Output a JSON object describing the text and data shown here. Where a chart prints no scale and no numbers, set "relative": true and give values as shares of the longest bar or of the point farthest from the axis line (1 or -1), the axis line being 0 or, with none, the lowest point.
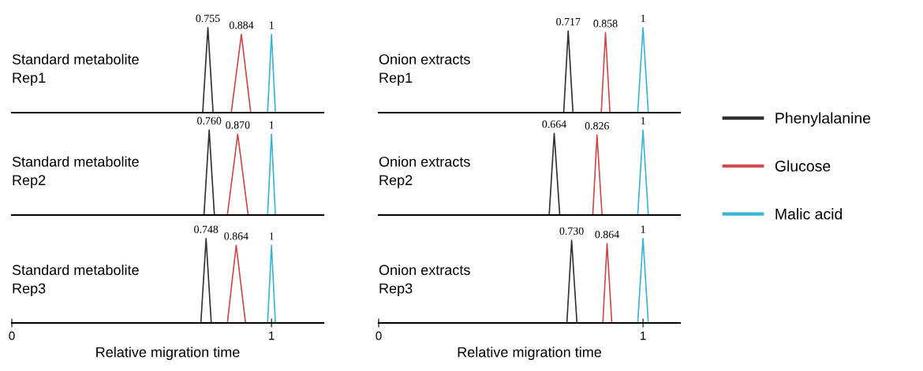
{
  "chart_data": [
    {
      "type": "line",
      "relative": true,
      "xlim": [
        0,
        1.2
      ],
      "tick_labels": false,
      "annotations": [
        "Standard metabolite\nRep1",
        {
          "text": "0.755",
          "x": 0.755,
          "y": 1
        },
        {
          "text": "0.884",
          "x": 0.884,
          "y": 0.92
        },
        {
          "text": "1",
          "x": 1,
          "y": 0.92
        }
      ],
      "series": [
        {
          "color": "#333333",
          "x": [
            0.735,
            0.755,
            0.775
          ],
          "values": [
            0,
            1,
            0
          ]
        },
        {
          "color": "#d04848",
          "x": [
            0.845,
            0.884,
            0.92
          ],
          "values": [
            0,
            0.92,
            0
          ]
        },
        {
          "color": "#3ab4d8",
          "x": [
            0.985,
            1,
            1.015
          ],
          "values": [
            0,
            0.92,
            0
          ]
        }
      ]
    },
    {
      "type": "line",
      "relative": true,
      "xlim": [
        0,
        1.14
      ],
      "tick_labels": false,
      "annotations": [
        "Onion extracts\nRep1",
        {
          "text": "0.717",
          "x": 0.717,
          "y": 0.96
        },
        {
          "text": "0.858",
          "x": 0.858,
          "y": 0.94
        },
        {
          "text": "1",
          "x": 1,
          "y": 1
        }
      ],
      "series": [
        {
          "color": "#333333",
          "x": [
            0.7,
            0.717,
            0.735
          ],
          "values": [
            0,
            0.96,
            0
          ]
        },
        {
          "color": "#d04848",
          "x": [
            0.842,
            0.858,
            0.875
          ],
          "values": [
            0,
            0.94,
            0
          ]
        },
        {
          "color": "#3ab4d8",
          "x": [
            0.98,
            1,
            1.02
          ],
          "values": [
            0,
            1,
            0
          ]
        }
      ]
    },
    {
      "type": "line",
      "relative": true,
      "xlim": [
        0,
        1.2
      ],
      "tick_labels": false,
      "annotations": [
        "Standard metabolite\nRep2",
        {
          "text": "0.760",
          "x": 0.76,
          "y": 1
        },
        {
          "text": "0.870",
          "x": 0.87,
          "y": 0.95
        },
        {
          "text": "1",
          "x": 1,
          "y": 0.95
        }
      ],
      "series": [
        {
          "color": "#333333",
          "x": [
            0.74,
            0.76,
            0.78
          ],
          "values": [
            0,
            1,
            0
          ]
        },
        {
          "color": "#d04848",
          "x": [
            0.83,
            0.87,
            0.91
          ],
          "values": [
            0,
            0.95,
            0
          ]
        },
        {
          "color": "#3ab4d8",
          "x": [
            0.985,
            1,
            1.015
          ],
          "values": [
            0,
            0.95,
            0
          ]
        }
      ]
    },
    {
      "type": "line",
      "relative": true,
      "xlim": [
        0,
        1.14
      ],
      "tick_labels": false,
      "legend": "right",
      "annotations": [
        "Onion extracts\nRep2",
        {
          "text": "0.664",
          "x": 0.664,
          "y": 0.96
        },
        {
          "text": "0.826",
          "x": 0.826,
          "y": 0.94
        },
        {
          "text": "1",
          "x": 1,
          "y": 1
        }
      ],
      "series": [
        {
          "name": "Phenylalanine",
          "color": "#333333",
          "x": [
            0.645,
            0.664,
            0.685
          ],
          "values": [
            0,
            0.96,
            0
          ]
        },
        {
          "name": "Glucose",
          "color": "#d04848",
          "x": [
            0.81,
            0.826,
            0.845
          ],
          "values": [
            0,
            0.94,
            0
          ]
        },
        {
          "name": "Malic acid",
          "color": "#3ab4d8",
          "x": [
            0.98,
            1,
            1.02
          ],
          "values": [
            0,
            1,
            0
          ]
        }
      ]
    },
    {
      "type": "line",
      "relative": true,
      "xlim": [
        0,
        1.2
      ],
      "xticks": [
        0,
        1
      ],
      "tick_labels": "x",
      "xlabel": "Relative migration time",
      "annotations": [
        "Standard metabolite\nRep3",
        {
          "text": "0.748",
          "x": 0.748,
          "y": 1
        },
        {
          "text": "0.864",
          "x": 0.864,
          "y": 0.92
        },
        {
          "text": "1",
          "x": 1,
          "y": 0.92
        }
      ],
      "series": [
        {
          "color": "#333333",
          "x": [
            0.728,
            0.748,
            0.768
          ],
          "values": [
            0,
            1,
            0
          ]
        },
        {
          "color": "#d04848",
          "x": [
            0.83,
            0.864,
            0.9
          ],
          "values": [
            0,
            0.92,
            0
          ]
        },
        {
          "color": "#3ab4d8",
          "x": [
            0.985,
            1,
            1.015
          ],
          "values": [
            0,
            0.92,
            0
          ]
        }
      ]
    },
    {
      "type": "line",
      "relative": true,
      "xlim": [
        0,
        1.14
      ],
      "xticks": [
        0,
        1
      ],
      "tick_labels": "x",
      "xlabel": "Relative migration time",
      "annotations": [
        "Onion extracts\nRep3",
        {
          "text": "0.730",
          "x": 0.73,
          "y": 0.98
        },
        {
          "text": "0.864",
          "x": 0.864,
          "y": 0.94
        },
        {
          "text": "1",
          "x": 1,
          "y": 1
        }
      ],
      "series": [
        {
          "color": "#333333",
          "x": [
            0.712,
            0.73,
            0.75
          ],
          "values": [
            0,
            0.98,
            0
          ]
        },
        {
          "color": "#d04848",
          "x": [
            0.848,
            0.864,
            0.882
          ],
          "values": [
            0,
            0.94,
            0
          ]
        },
        {
          "color": "#3ab4d8",
          "x": [
            0.98,
            1,
            1.02
          ],
          "values": [
            0,
            1,
            0
          ]
        }
      ]
    }
  ]
}
